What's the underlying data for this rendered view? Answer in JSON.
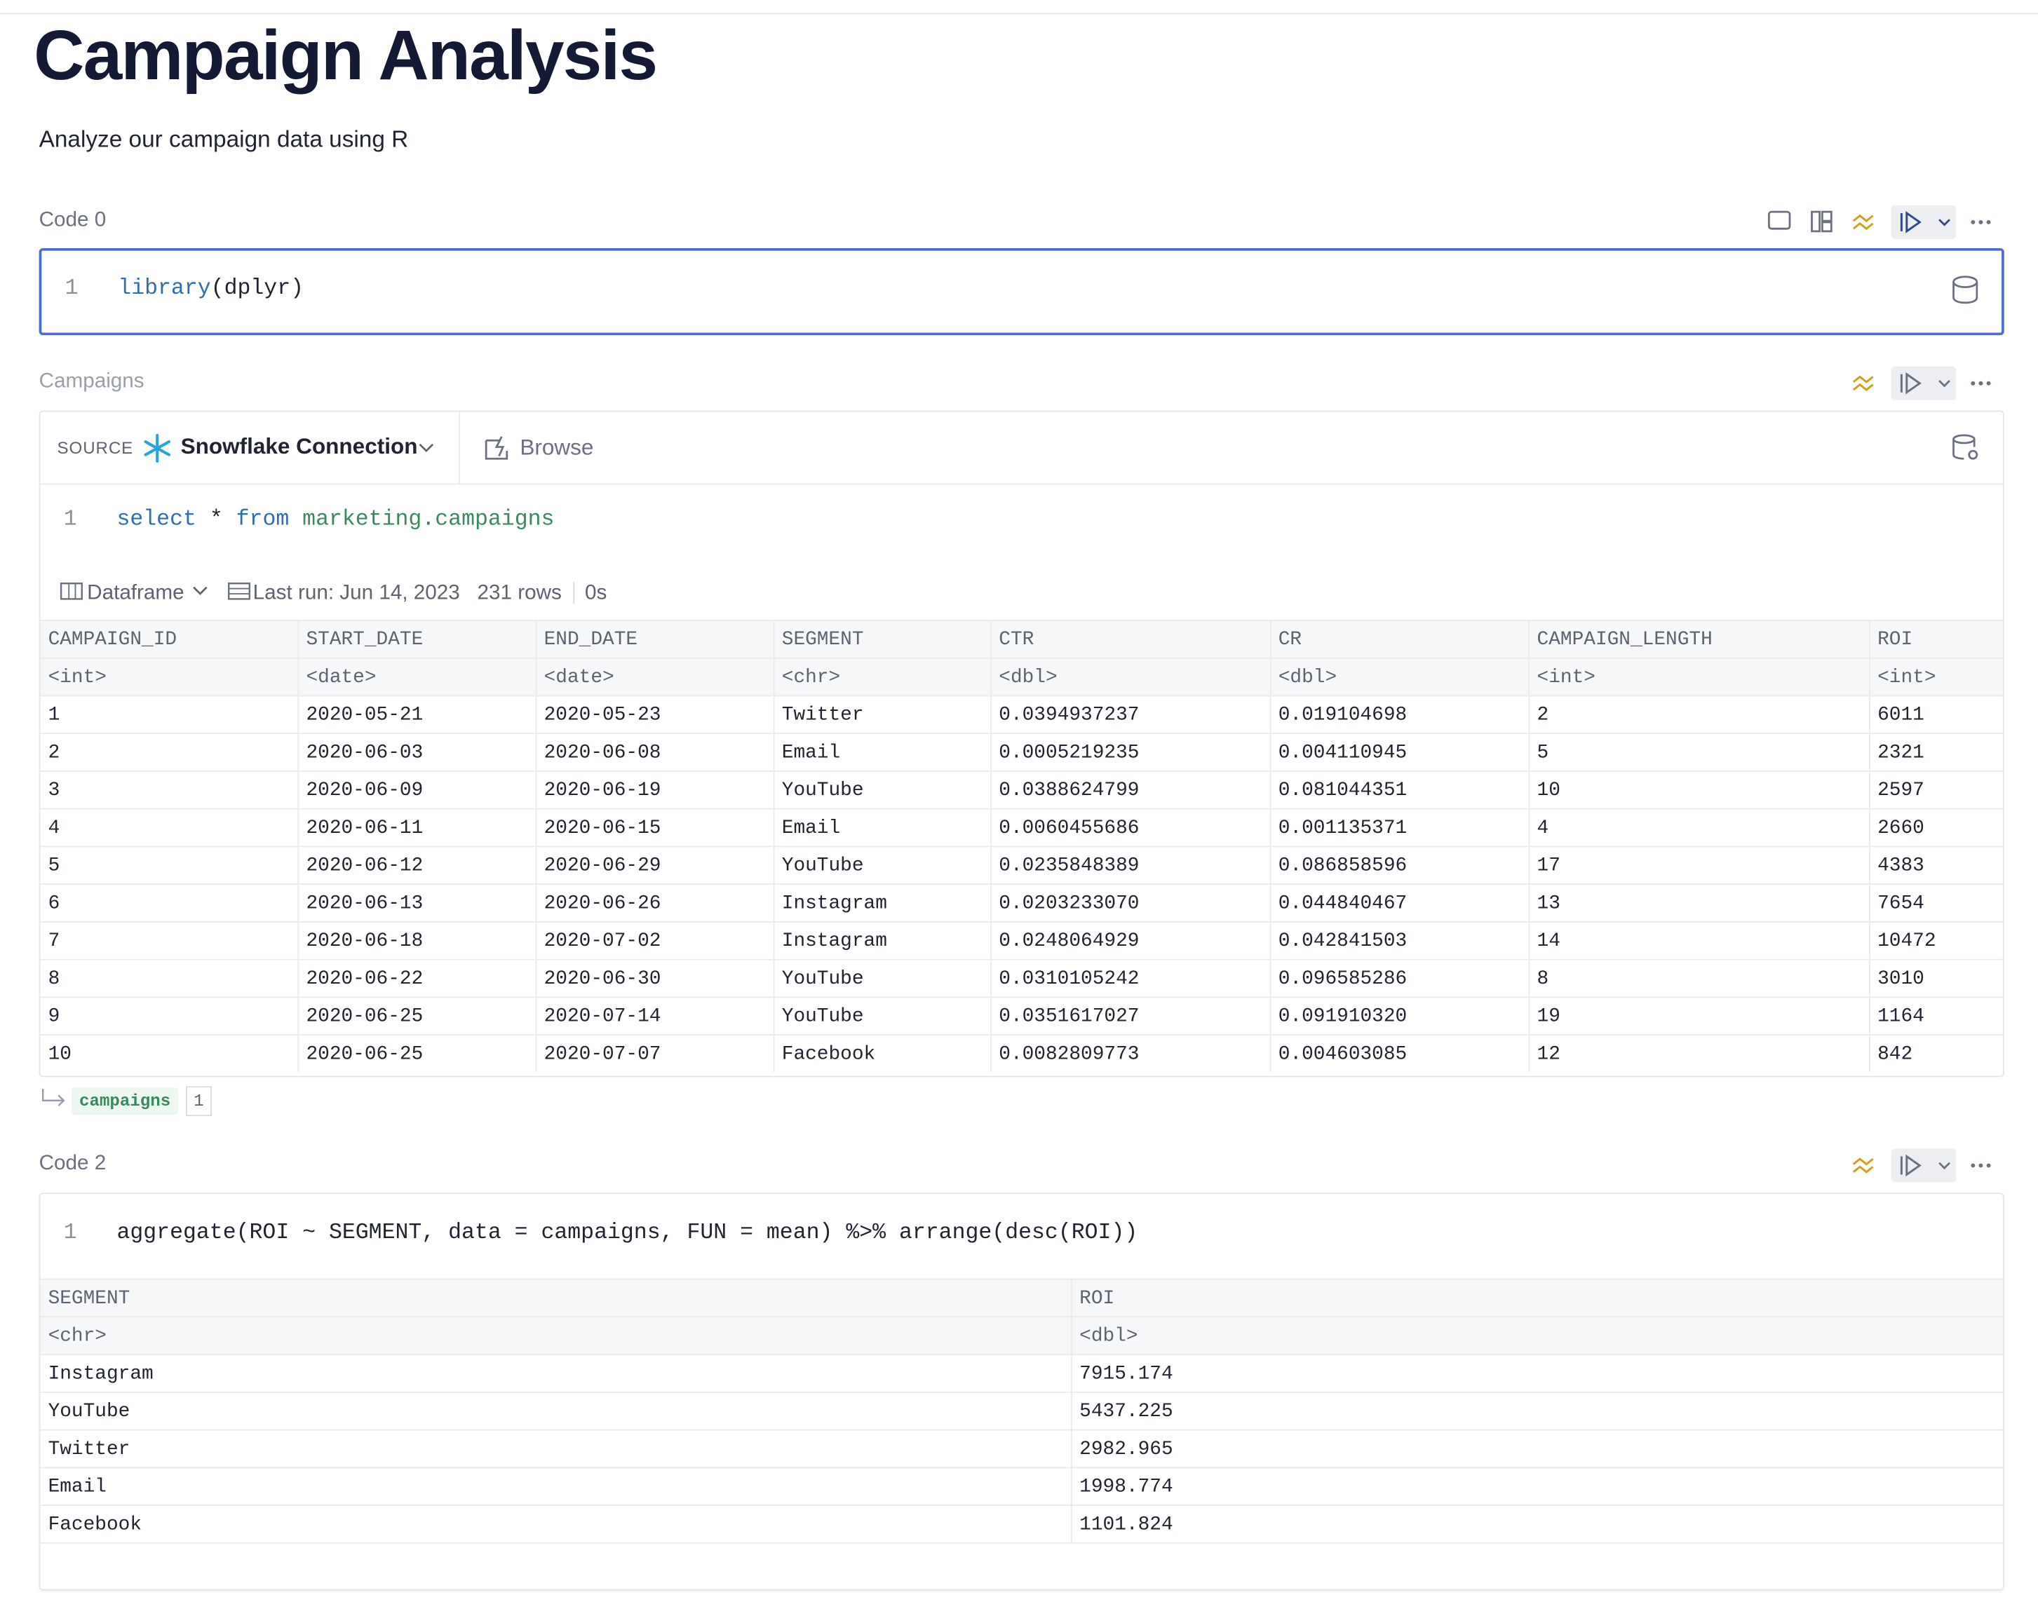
{
  "header": {
    "title": "Campaign Analysis",
    "subtitle": "Analyze our campaign data using R"
  },
  "cells": [
    {
      "label": "Code 0",
      "code": {
        "line_number": "1",
        "tokens": [
          {
            "text": "library",
            "color": "#2f6db5"
          },
          {
            "text": "(dplyr)",
            "color": "#1f2430"
          }
        ]
      }
    },
    {
      "label": "Campaigns",
      "source_label": "SOURCE",
      "connection": "Snowflake Connection",
      "browse": "Browse",
      "code": {
        "line_number": "1",
        "tokens": [
          {
            "text": "select",
            "color": "#2f6db5"
          },
          {
            "text": " * ",
            "color": "#1f2430"
          },
          {
            "text": "from",
            "color": "#2f6db5"
          },
          {
            "text": " ",
            "color": "#1f2430"
          },
          {
            "text": "marketing.campaigns",
            "color": "#3a8a5c"
          }
        ]
      },
      "output": {
        "format": "Dataframe",
        "last_run": "Last run: Jun 14, 2023",
        "row_count": "231 rows",
        "duration": "0s",
        "table": {
          "columns": [
            "CAMPAIGN_ID",
            "START_DATE",
            "END_DATE",
            "SEGMENT",
            "CTR",
            "CR",
            "CAMPAIGN_LENGTH",
            "ROI"
          ],
          "types": [
            "<int>",
            "<date>",
            "<date>",
            "<chr>",
            "<dbl>",
            "<dbl>",
            "<int>",
            "<int>"
          ],
          "rows": [
            [
              "1",
              "2020-05-21",
              "2020-05-23",
              "Twitter",
              "0.0394937237",
              "0.019104698",
              "2",
              "6011"
            ],
            [
              "2",
              "2020-06-03",
              "2020-06-08",
              "Email",
              "0.0005219235",
              "0.004110945",
              "5",
              "2321"
            ],
            [
              "3",
              "2020-06-09",
              "2020-06-19",
              "YouTube",
              "0.0388624799",
              "0.081044351",
              "10",
              "2597"
            ],
            [
              "4",
              "2020-06-11",
              "2020-06-15",
              "Email",
              "0.0060455686",
              "0.001135371",
              "4",
              "2660"
            ],
            [
              "5",
              "2020-06-12",
              "2020-06-29",
              "YouTube",
              "0.0235848389",
              "0.086858596",
              "17",
              "4383"
            ],
            [
              "6",
              "2020-06-13",
              "2020-06-26",
              "Instagram",
              "0.0203233070",
              "0.044840467",
              "13",
              "7654"
            ],
            [
              "7",
              "2020-06-18",
              "2020-07-02",
              "Instagram",
              "0.0248064929",
              "0.042841503",
              "14",
              "10472"
            ],
            [
              "8",
              "2020-06-22",
              "2020-06-30",
              "YouTube",
              "0.0310105242",
              "0.096585286",
              "8",
              "3010"
            ],
            [
              "9",
              "2020-06-25",
              "2020-07-14",
              "YouTube",
              "0.0351617027",
              "0.091910320",
              "19",
              "1164"
            ],
            [
              "10",
              "2020-06-25",
              "2020-07-07",
              "Facebook",
              "0.0082809773",
              "0.004603085",
              "12",
              "842"
            ]
          ]
        }
      },
      "result_variable": "campaigns",
      "result_count": "1"
    },
    {
      "label": "Code 2",
      "code": {
        "line_number": "1",
        "tokens": [
          {
            "text": "aggregate(ROI ~ SEGMENT, data = campaigns, FUN = mean) %>% arrange(desc(ROI))",
            "color": "#1f2430"
          }
        ]
      },
      "output": {
        "table": {
          "columns": [
            "SEGMENT",
            "ROI"
          ],
          "types": [
            "<chr>",
            "<dbl>"
          ],
          "rows": [
            [
              "Instagram",
              "7915.174"
            ],
            [
              "YouTube",
              "5437.225"
            ],
            [
              "Twitter",
              "2982.965"
            ],
            [
              "Email",
              "1998.774"
            ],
            [
              "Facebook",
              "1101.824"
            ]
          ]
        }
      }
    }
  ]
}
